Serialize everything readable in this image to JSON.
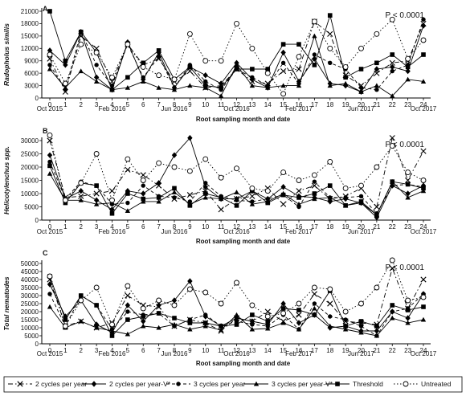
{
  "chart_data": [
    {
      "type": "line",
      "panel_label": "A",
      "annotation": "P < 0.0001",
      "ylabel": "Radopholus similis",
      "xlabel": "Root sampling month and date",
      "ylim": [
        0,
        21000
      ],
      "yticks": [
        0,
        3000,
        6000,
        9000,
        12000,
        15000,
        18000,
        21000
      ],
      "x": [
        0,
        1,
        2,
        3,
        4,
        5,
        6,
        7,
        8,
        9,
        10,
        11,
        12,
        13,
        14,
        15,
        16,
        17,
        18,
        19,
        20,
        21,
        22,
        23,
        24
      ],
      "date_ticks": [
        {
          "x": 0,
          "label": "Oct 2015"
        },
        {
          "x": 4,
          "label": "Feb 2016"
        },
        {
          "x": 8,
          "label": "Jun 2016"
        },
        {
          "x": 12,
          "label": "Oct 2016"
        },
        {
          "x": 16,
          "label": "Feb 2017"
        },
        {
          "x": 20,
          "label": "Jun 2017"
        },
        {
          "x": 24,
          "label": "Oct 2017"
        }
      ],
      "series": [
        {
          "name": "2 cycles per year",
          "values": [
            9500,
            1500,
            15000,
            12000,
            4000,
            13000,
            8000,
            9500,
            4000,
            6500,
            2500,
            3000,
            7000,
            4000,
            3500,
            6500,
            7000,
            18500,
            15500,
            5500,
            3000,
            6000,
            8500,
            9000,
            18000
          ]
        },
        {
          "name": "2 cycles per year-V*",
          "values": [
            11500,
            8000,
            16000,
            5000,
            2000,
            13500,
            4500,
            11000,
            2500,
            7500,
            5500,
            3500,
            8500,
            4500,
            2500,
            11000,
            4000,
            9500,
            3500,
            3000,
            1500,
            7000,
            7500,
            6500,
            17500
          ]
        },
        {
          "name": "3 cycles per year",
          "values": [
            8000,
            2000,
            16000,
            8000,
            3000,
            13000,
            5000,
            10000,
            2500,
            8000,
            4000,
            2000,
            7000,
            5000,
            3000,
            8500,
            3500,
            10500,
            8500,
            7000,
            2500,
            2000,
            6500,
            8000,
            19000
          ]
        },
        {
          "name": "3 cycles per year-V*",
          "values": [
            7000,
            2500,
            6500,
            4000,
            2000,
            2500,
            4000,
            2500,
            2000,
            3000,
            2500,
            500,
            8000,
            3000,
            2500,
            3000,
            3000,
            15000,
            3000,
            3500,
            1500,
            3000,
            500,
            4500,
            4000
          ]
        },
        {
          "name": "Threshold",
          "values": [
            21000,
            9000,
            16000,
            11000,
            2000,
            5000,
            8500,
            11500,
            4500,
            7500,
            3000,
            2500,
            7000,
            7000,
            7000,
            13000,
            13000,
            8000,
            20000,
            5000,
            7000,
            8500,
            10500,
            7500,
            10500
          ]
        },
        {
          "name": "Untreated",
          "values": [
            10500,
            3500,
            13000,
            11000,
            5000,
            13000,
            7500,
            5500,
            4500,
            15500,
            9000,
            9000,
            18000,
            12000,
            6000,
            1000,
            10000,
            18500,
            12000,
            7500,
            12000,
            15500,
            19000,
            9500,
            14000
          ]
        }
      ]
    },
    {
      "type": "line",
      "panel_label": "B",
      "annotation": "P < 0.0001",
      "ylabel": "Helicotylenchus spp.",
      "xlabel": "Root sampling month and date",
      "ylim": [
        0,
        30000
      ],
      "yticks": [
        0,
        5000,
        10000,
        15000,
        20000,
        25000,
        30000
      ],
      "x": [
        0,
        1,
        2,
        3,
        4,
        5,
        6,
        7,
        8,
        9,
        10,
        11,
        12,
        13,
        14,
        15,
        16,
        17,
        18,
        19,
        20,
        21,
        22,
        23,
        24
      ],
      "date_ticks": [
        {
          "x": 0,
          "label": "Oct 2015"
        },
        {
          "x": 4,
          "label": "Feb 2016"
        },
        {
          "x": 8,
          "label": "Jun 2016"
        },
        {
          "x": 12,
          "label": "Oct 2016"
        },
        {
          "x": 16,
          "label": "Feb 2017"
        },
        {
          "x": 20,
          "label": "Jun 2017"
        },
        {
          "x": 24,
          "label": "Oct 2017"
        }
      ],
      "series": [
        {
          "name": "2 cycles per year",
          "values": [
            30000,
            8500,
            9000,
            10000,
            11000,
            19000,
            17000,
            13000,
            8000,
            9500,
            11000,
            4000,
            8000,
            9000,
            12000,
            6000,
            11000,
            13000,
            8000,
            9000,
            12000,
            5000,
            31000,
            15000,
            26000
          ]
        },
        {
          "name": "2 cycles per year-V*",
          "values": [
            24500,
            8000,
            11000,
            7500,
            4000,
            11000,
            10000,
            14000,
            24500,
            31000,
            12500,
            8000,
            8000,
            11000,
            8000,
            12500,
            9000,
            8500,
            7000,
            8000,
            6500,
            1000,
            13000,
            10000,
            13000
          ]
        },
        {
          "name": "3 cycles per year",
          "values": [
            22000,
            8000,
            14500,
            13000,
            6000,
            6500,
            13000,
            9000,
            8500,
            7000,
            14000,
            9000,
            7500,
            7000,
            8000,
            9500,
            5000,
            14500,
            8500,
            8500,
            9000,
            2500,
            13000,
            13500,
            12500
          ]
        },
        {
          "name": "3 cycles per year-V*",
          "values": [
            17500,
            7500,
            7500,
            6000,
            6500,
            3500,
            7000,
            7000,
            10500,
            6000,
            8500,
            8000,
            10500,
            6000,
            7000,
            10000,
            6000,
            8000,
            8500,
            5500,
            6500,
            2000,
            14500,
            8500,
            11000
          ]
        },
        {
          "name": "Threshold",
          "values": [
            20500,
            6500,
            14000,
            13000,
            2500,
            10000,
            8000,
            8500,
            12000,
            5500,
            10000,
            8500,
            5500,
            11000,
            6500,
            9500,
            8500,
            10000,
            13000,
            5500,
            7000,
            2000,
            14500,
            13500,
            12000
          ]
        },
        {
          "name": "Untreated",
          "values": [
            32000,
            7500,
            14000,
            25000,
            7500,
            23000,
            15000,
            21500,
            20000,
            18500,
            23000,
            16000,
            19500,
            12000,
            11000,
            18000,
            15000,
            17000,
            22000,
            12000,
            13000,
            20000,
            28000,
            18000,
            15000
          ]
        }
      ]
    },
    {
      "type": "line",
      "panel_label": "C",
      "annotation": "P < 0.0001",
      "ylabel": "Total nematodes",
      "xlabel": "Root sampling month and date",
      "ylim": [
        0,
        50000
      ],
      "yticks": [
        0,
        5000,
        10000,
        15000,
        20000,
        25000,
        30000,
        35000,
        40000,
        45000,
        50000
      ],
      "x": [
        0,
        1,
        2,
        3,
        4,
        5,
        6,
        7,
        8,
        9,
        10,
        11,
        12,
        13,
        14,
        15,
        16,
        17,
        18,
        19,
        20,
        21,
        22,
        23,
        24
      ],
      "date_ticks": [
        {
          "x": 0,
          "label": "Oct 2015"
        },
        {
          "x": 4,
          "label": "Feb 2016"
        },
        {
          "x": 8,
          "label": "Jun 2016"
        },
        {
          "x": 12,
          "label": "Oct 2016"
        },
        {
          "x": 16,
          "label": "Feb 2017"
        },
        {
          "x": 20,
          "label": "Jun 2017"
        },
        {
          "x": 24,
          "label": "Oct 2017"
        }
      ],
      "series": [
        {
          "name": "2 cycles per year",
          "values": [
            40000,
            11000,
            14000,
            10000,
            13000,
            30000,
            24000,
            23000,
            11000,
            15000,
            13000,
            8000,
            16000,
            14000,
            20000,
            14000,
            18000,
            31000,
            25000,
            14000,
            13000,
            12000,
            47000,
            22000,
            40000
          ]
        },
        {
          "name": "2 cycles per year-V*",
          "values": [
            37000,
            17000,
            27000,
            12000,
            7000,
            24000,
            14000,
            24000,
            27000,
            39000,
            17000,
            11000,
            16000,
            14000,
            12000,
            25000,
            13000,
            18000,
            10000,
            11000,
            8000,
            8000,
            20000,
            16000,
            31000
          ]
        },
        {
          "name": "3 cycles per year",
          "values": [
            31000,
            11000,
            30000,
            24000,
            9000,
            20000,
            18000,
            19000,
            11000,
            15000,
            18000,
            11000,
            14000,
            12000,
            11000,
            18000,
            9000,
            25000,
            17000,
            15000,
            11000,
            5000,
            20000,
            22000,
            31000
          ]
        },
        {
          "name": "3 cycles per year-V*",
          "values": [
            23000,
            10000,
            14000,
            10000,
            8000,
            6000,
            11000,
            10000,
            12000,
            9000,
            11000,
            8500,
            18000,
            9000,
            9500,
            13000,
            9000,
            22000,
            11000,
            9000,
            7000,
            5000,
            16000,
            13000,
            15000
          ]
        },
        {
          "name": "Threshold",
          "values": [
            42000,
            15000,
            30000,
            24000,
            5000,
            15000,
            17000,
            19000,
            16000,
            13000,
            13000,
            11000,
            12000,
            18000,
            14000,
            22000,
            21000,
            18000,
            33000,
            11000,
            14000,
            11000,
            24000,
            21000,
            23000
          ]
        },
        {
          "name": "Untreated",
          "values": [
            42000,
            11000,
            27000,
            35000,
            12000,
            36000,
            22000,
            27000,
            24000,
            34000,
            32000,
            25000,
            38000,
            24000,
            17000,
            19000,
            25000,
            35000,
            34000,
            20000,
            25000,
            35000,
            52000,
            27000,
            29000
          ]
        }
      ]
    }
  ],
  "legend": {
    "items": [
      {
        "label": "2 cycles per year",
        "dash": "6,3,1.5,3",
        "marker": "x"
      },
      {
        "label": "2 cycles per year-V*",
        "dash": "",
        "marker": "diamond"
      },
      {
        "label": "3 cycles per year",
        "dash": "4,3",
        "marker": "circle-filled"
      },
      {
        "label": "3 cycles per year-V*",
        "dash": "",
        "marker": "triangle"
      },
      {
        "label": "Threshold",
        "dash": "",
        "marker": "square"
      },
      {
        "label": "Untreated",
        "dash": "1.5,2.5",
        "marker": "circle-open"
      }
    ]
  }
}
